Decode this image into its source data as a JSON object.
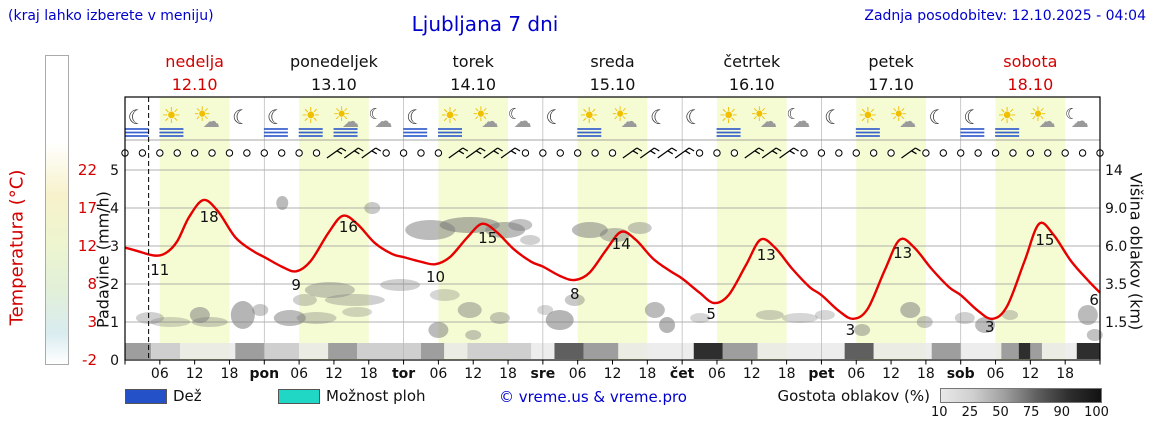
{
  "header": {
    "hint": "(kraj lahko izberete v meniju)",
    "title": "Ljubljana 7 dni",
    "updated": "Zadnja posodobitev: 12.10.2025 - 04:04"
  },
  "days": [
    {
      "name": "nedelja",
      "date": "12.10",
      "weekend": true
    },
    {
      "name": "ponedeljek",
      "date": "13.10",
      "weekend": false
    },
    {
      "name": "torek",
      "date": "14.10",
      "weekend": false
    },
    {
      "name": "sreda",
      "date": "15.10",
      "weekend": false
    },
    {
      "name": "četrtek",
      "date": "16.10",
      "weekend": false
    },
    {
      "name": "petek",
      "date": "17.10",
      "weekend": false
    },
    {
      "name": "sobota",
      "date": "18.10",
      "weekend": true
    }
  ],
  "axes": {
    "temp_label": "Temperatura (°C)",
    "precip_label": "Padavine (mm/h)",
    "cloud_label": "Višina oblakov (km)",
    "temp_ticks": [
      "22",
      "17",
      "12",
      "8",
      "3",
      "-2"
    ],
    "precip_ticks": [
      "5",
      "4",
      "3",
      "2",
      "1",
      "0"
    ],
    "cloud_ticks": [
      "14",
      "9.0",
      "6.0",
      "3.5",
      "1.5"
    ],
    "time_ticks": [
      {
        "h": 6,
        "t": "06"
      },
      {
        "h": 12,
        "t": "12"
      },
      {
        "h": 18,
        "t": "18"
      },
      {
        "h": 24,
        "t": "pon"
      },
      {
        "h": 30,
        "t": "06"
      },
      {
        "h": 36,
        "t": "12"
      },
      {
        "h": 42,
        "t": "18"
      },
      {
        "h": 48,
        "t": "tor"
      },
      {
        "h": 54,
        "t": "06"
      },
      {
        "h": 60,
        "t": "12"
      },
      {
        "h": 66,
        "t": "18"
      },
      {
        "h": 72,
        "t": "sre"
      },
      {
        "h": 78,
        "t": "06"
      },
      {
        "h": 84,
        "t": "12"
      },
      {
        "h": 90,
        "t": "18"
      },
      {
        "h": 96,
        "t": "čet"
      },
      {
        "h": 102,
        "t": "06"
      },
      {
        "h": 108,
        "t": "12"
      },
      {
        "h": 114,
        "t": "18"
      },
      {
        "h": 120,
        "t": "pet"
      },
      {
        "h": 126,
        "t": "06"
      },
      {
        "h": 132,
        "t": "12"
      },
      {
        "h": 138,
        "t": "18"
      },
      {
        "h": 144,
        "t": "sob"
      },
      {
        "h": 150,
        "t": "06"
      },
      {
        "h": 156,
        "t": "12"
      },
      {
        "h": 162,
        "t": "18"
      }
    ]
  },
  "legend": {
    "rain": "Dež",
    "rain_color": "#2451c8",
    "showers": "Možnost ploh",
    "showers_color": "#1fd7c4",
    "copyright": "© vreme.us & vreme.pro",
    "cloud_density": "Gostota oblakov (%)",
    "density_ticks": [
      "10",
      "25",
      "50",
      "75",
      "90",
      "100"
    ]
  },
  "colors": {
    "day_band": "#f5fbd2",
    "grid": "#999999",
    "temp_axis": "#d40000",
    "header_blue": "#0000cd",
    "fog": "#3a62cc",
    "sun": "#f0c000",
    "cloud_icon": "#9a9a9a",
    "moon": "#333333",
    "density": {
      "10": "#e8e8e8",
      "25": "#cfcfcf",
      "50": "#9e9e9e",
      "75": "#5f5f5f",
      "90": "#2e2e2e",
      "100": "#121212"
    }
  },
  "chart_data": {
    "type": "line",
    "title": "Ljubljana 7 dni",
    "x_unit": "hours from 2025-10-12 00:00",
    "x_range": [
      0,
      168
    ],
    "temp_axis_range": [
      -2,
      22
    ],
    "precip_axis_range": [
      0,
      5
    ],
    "cloud_height_ticks_km": [
      1.5,
      3.5,
      6.0,
      9.0,
      14
    ],
    "current_time_h": 4.07,
    "day_band_hours": [
      6,
      18
    ],
    "temperature": {
      "name": "Temperatura (°C)",
      "color": "#e60000",
      "points": [
        [
          0,
          12.2
        ],
        [
          2,
          11.8
        ],
        [
          5,
          11.2
        ],
        [
          7,
          11.5
        ],
        [
          9,
          13
        ],
        [
          11,
          16
        ],
        [
          13.5,
          18.2
        ],
        [
          16,
          16.8
        ],
        [
          19,
          13.5
        ],
        [
          22,
          11.8
        ],
        [
          24,
          11
        ],
        [
          27,
          9.8
        ],
        [
          29.5,
          9.2
        ],
        [
          32,
          10.5
        ],
        [
          35,
          14
        ],
        [
          37.5,
          16.2
        ],
        [
          40,
          15.2
        ],
        [
          43,
          12.8
        ],
        [
          46,
          11.4
        ],
        [
          48,
          11
        ],
        [
          51,
          10.4
        ],
        [
          53.5,
          10.1
        ],
        [
          56,
          11
        ],
        [
          59,
          13.5
        ],
        [
          61.5,
          15.2
        ],
        [
          64,
          14.2
        ],
        [
          67,
          12
        ],
        [
          70,
          10.4
        ],
        [
          72,
          9.8
        ],
        [
          75,
          8.6
        ],
        [
          77.5,
          8.1
        ],
        [
          80,
          9
        ],
        [
          83,
          12
        ],
        [
          85.5,
          14.2
        ],
        [
          88,
          13.2
        ],
        [
          91,
          10.8
        ],
        [
          94,
          9.2
        ],
        [
          96,
          8.3
        ],
        [
          99,
          6.5
        ],
        [
          101.5,
          5.2
        ],
        [
          104,
          6.2
        ],
        [
          107,
          10
        ],
        [
          109.5,
          13.2
        ],
        [
          112,
          12.2
        ],
        [
          115,
          9.5
        ],
        [
          118,
          7.2
        ],
        [
          120,
          6.2
        ],
        [
          123,
          4.2
        ],
        [
          125.5,
          3.2
        ],
        [
          128,
          4.5
        ],
        [
          131,
          9.5
        ],
        [
          133.5,
          13.2
        ],
        [
          136,
          12.2
        ],
        [
          139,
          9.5
        ],
        [
          142,
          7.2
        ],
        [
          144,
          6.2
        ],
        [
          147,
          4.2
        ],
        [
          149.5,
          3.2
        ],
        [
          152,
          4.8
        ],
        [
          155,
          10.5
        ],
        [
          157.5,
          15.2
        ],
        [
          160,
          13.8
        ],
        [
          163,
          10.5
        ],
        [
          166,
          8
        ],
        [
          168,
          6.5
        ]
      ]
    },
    "temp_labels": [
      {
        "h": 6,
        "t": "11",
        "y": 275
      },
      {
        "h": 14.5,
        "t": "18",
        "y": 222
      },
      {
        "h": 29.5,
        "t": "9",
        "y": 290
      },
      {
        "h": 38.5,
        "t": "16",
        "y": 232
      },
      {
        "h": 53.5,
        "t": "10",
        "y": 282
      },
      {
        "h": 62.5,
        "t": "15",
        "y": 243
      },
      {
        "h": 77.5,
        "t": "8",
        "y": 299
      },
      {
        "h": 85.5,
        "t": "14",
        "y": 249
      },
      {
        "h": 101,
        "t": "5",
        "y": 319
      },
      {
        "h": 110.5,
        "t": "13",
        "y": 260
      },
      {
        "h": 125,
        "t": "3",
        "y": 335
      },
      {
        "h": 134,
        "t": "13",
        "y": 258
      },
      {
        "h": 149,
        "t": "3",
        "y": 332
      },
      {
        "h": 158.5,
        "t": "15",
        "y": 245
      },
      {
        "h": 167,
        "t": "6",
        "y": 305
      }
    ],
    "clouds": [
      [
        4.3,
        318,
        14,
        6,
        0.35
      ],
      [
        7.8,
        322,
        20,
        5,
        0.3
      ],
      [
        12.9,
        315,
        10,
        8,
        0.5
      ],
      [
        14.6,
        322,
        18,
        5,
        0.35
      ],
      [
        20.3,
        315,
        12,
        14,
        0.55
      ],
      [
        23.3,
        310,
        8,
        6,
        0.4
      ],
      [
        27.1,
        203,
        6,
        7,
        0.5
      ],
      [
        28.4,
        318,
        16,
        8,
        0.5
      ],
      [
        31,
        300,
        12,
        6,
        0.35
      ],
      [
        33,
        318,
        20,
        6,
        0.35
      ],
      [
        35.3,
        290,
        25,
        8,
        0.4
      ],
      [
        39.6,
        300,
        30,
        6,
        0.35
      ],
      [
        40,
        312,
        15,
        5,
        0.3
      ],
      [
        42.6,
        208,
        8,
        6,
        0.4
      ],
      [
        47.4,
        285,
        20,
        6,
        0.35
      ],
      [
        52.6,
        230,
        25,
        10,
        0.5
      ],
      [
        54,
        330,
        10,
        8,
        0.5
      ],
      [
        55.1,
        295,
        15,
        6,
        0.3
      ],
      [
        59.4,
        225,
        30,
        8,
        0.55
      ],
      [
        59.4,
        310,
        12,
        8,
        0.45
      ],
      [
        60,
        335,
        8,
        5,
        0.4
      ],
      [
        64.6,
        318,
        10,
        6,
        0.4
      ],
      [
        65.5,
        230,
        20,
        8,
        0.5
      ],
      [
        68.1,
        225,
        12,
        6,
        0.45
      ],
      [
        69.8,
        240,
        10,
        5,
        0.35
      ],
      [
        72.4,
        310,
        8,
        5,
        0.3
      ],
      [
        74.9,
        320,
        14,
        10,
        0.55
      ],
      [
        77.5,
        300,
        10,
        6,
        0.4
      ],
      [
        80.1,
        230,
        18,
        8,
        0.5
      ],
      [
        84.4,
        235,
        15,
        7,
        0.45
      ],
      [
        88.7,
        228,
        12,
        6,
        0.4
      ],
      [
        91.3,
        310,
        10,
        8,
        0.5
      ],
      [
        93.4,
        325,
        8,
        8,
        0.55
      ],
      [
        99.1,
        318,
        10,
        5,
        0.3
      ],
      [
        111.1,
        315,
        14,
        5,
        0.35
      ],
      [
        116.3,
        318,
        18,
        5,
        0.3
      ],
      [
        120.6,
        315,
        10,
        5,
        0.3
      ],
      [
        127,
        330,
        8,
        6,
        0.45
      ],
      [
        135.3,
        310,
        10,
        8,
        0.5
      ],
      [
        137.8,
        322,
        8,
        6,
        0.4
      ],
      [
        144.7,
        318,
        10,
        6,
        0.35
      ],
      [
        148.2,
        325,
        10,
        8,
        0.5
      ],
      [
        152.5,
        315,
        8,
        5,
        0.35
      ],
      [
        165.9,
        315,
        10,
        10,
        0.5
      ],
      [
        167.1,
        335,
        8,
        6,
        0.45
      ]
    ],
    "cloud_density": [
      [
        0,
        4.5,
        50
      ],
      [
        4.5,
        9.5,
        25
      ],
      [
        9.5,
        19,
        10
      ],
      [
        19,
        24,
        50
      ],
      [
        24,
        30,
        25
      ],
      [
        30,
        35,
        10
      ],
      [
        35,
        40,
        50
      ],
      [
        40,
        51,
        25
      ],
      [
        51,
        55,
        50
      ],
      [
        55,
        59,
        10
      ],
      [
        59,
        70,
        25
      ],
      [
        70,
        74,
        10
      ],
      [
        74,
        79,
        75
      ],
      [
        79,
        85,
        50
      ],
      [
        85,
        98,
        10
      ],
      [
        98,
        103,
        90
      ],
      [
        103,
        109,
        50
      ],
      [
        109,
        124,
        10
      ],
      [
        124,
        129,
        75
      ],
      [
        129,
        139,
        10
      ],
      [
        139,
        144,
        50
      ],
      [
        144,
        151,
        10
      ],
      [
        151,
        154,
        50
      ],
      [
        154,
        156,
        90
      ],
      [
        156,
        158,
        50
      ],
      [
        158,
        164,
        10
      ],
      [
        164,
        168,
        90
      ]
    ],
    "wind_barb_hours": [
      36,
      39,
      42,
      57,
      60,
      63,
      66,
      87,
      90,
      93,
      96,
      108,
      111,
      114,
      135
    ],
    "icons": [
      "moon-fog",
      "sun-fog",
      "sun-cloud",
      "moon",
      "moon-fog",
      "sun-fog",
      "sun-cloud-fog",
      "cloud-moon",
      "moon-fog",
      "sun-fog",
      "sun-cloud",
      "cloud-moon",
      "moon",
      "sun-fog",
      "sun-cloud",
      "moon",
      "moon",
      "sun-fog",
      "sun-cloud",
      "moon-cloud",
      "moon",
      "sun-fog",
      "sun-cloud",
      "moon",
      "moon-fog",
      "sun-fog",
      "sun-cloud",
      "moon-cloud"
    ]
  }
}
